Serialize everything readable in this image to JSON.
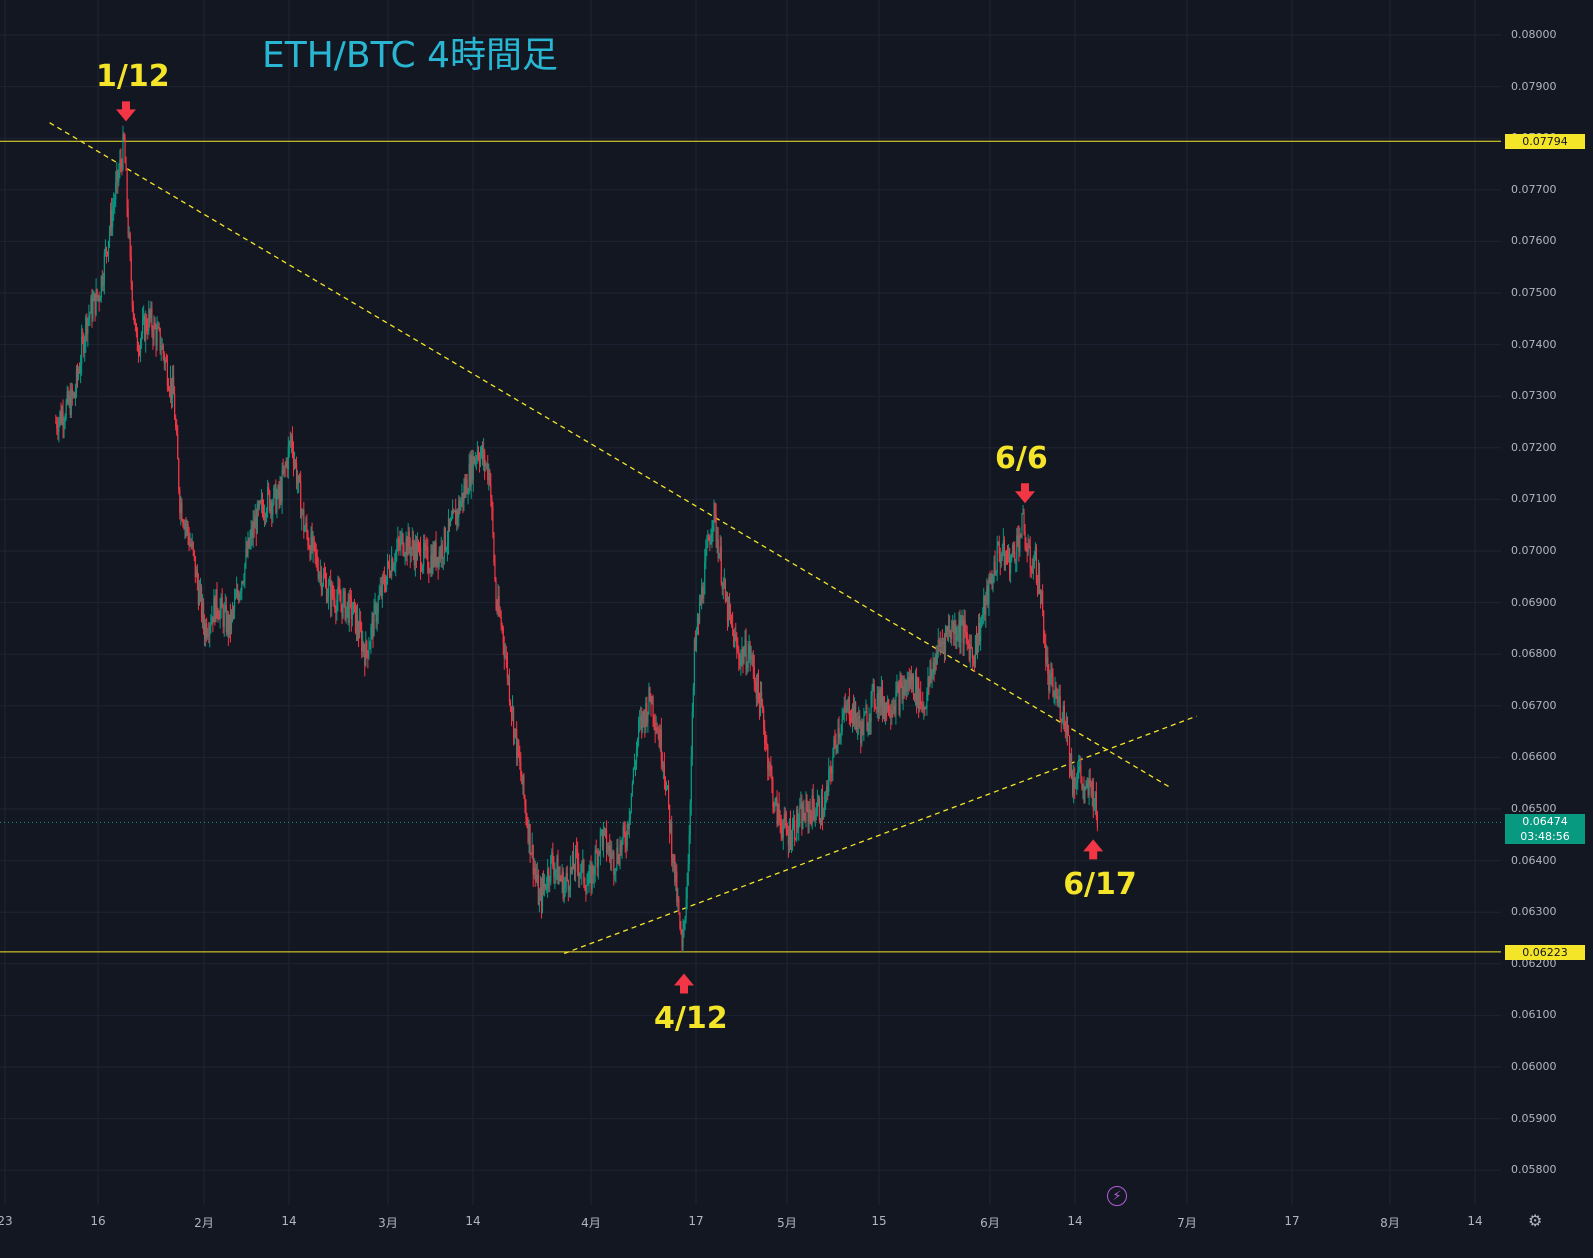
{
  "chart_data": {
    "type": "candlestick",
    "title": "ETH/BTC 4時間足",
    "ylim": [
      0.0575,
      0.0805
    ],
    "y_ticks": [
      "0.08000",
      "0.07900",
      "0.07800",
      "0.07700",
      "0.07600",
      "0.07500",
      "0.07400",
      "0.07300",
      "0.07200",
      "0.07100",
      "0.07000",
      "0.06900",
      "0.06800",
      "0.06700",
      "0.06600",
      "0.06500",
      "0.06400",
      "0.06300",
      "0.06200",
      "0.06100",
      "0.06000",
      "0.05900",
      "0.05800"
    ],
    "x_ticks": [
      "23",
      "16",
      "2月",
      "14",
      "3月",
      "14",
      "4月",
      "17",
      "5月",
      "15",
      "6月",
      "14",
      "7月",
      "17",
      "8月",
      "14"
    ],
    "price_path": [
      [
        "2023-01-01",
        0.0725
      ],
      [
        "2023-01-04",
        0.073
      ],
      [
        "2023-01-06",
        0.0745
      ],
      [
        "2023-01-08",
        0.075
      ],
      [
        "2023-01-10",
        0.0765
      ],
      [
        "2023-01-12",
        0.0779
      ],
      [
        "2023-01-13",
        0.0755
      ],
      [
        "2023-01-14",
        0.074
      ],
      [
        "2023-01-16",
        0.0745
      ],
      [
        "2023-01-18",
        0.074
      ],
      [
        "2023-01-20",
        0.073
      ],
      [
        "2023-01-21",
        0.071
      ],
      [
        "2023-01-23",
        0.07
      ],
      [
        "2023-01-25",
        0.0685
      ],
      [
        "2023-01-27",
        0.069
      ],
      [
        "2023-01-29",
        0.0685
      ],
      [
        "2023-01-31",
        0.0695
      ],
      [
        "2023-02-02",
        0.0705
      ],
      [
        "2023-02-04",
        0.071
      ],
      [
        "2023-02-06",
        0.071
      ],
      [
        "2023-02-08",
        0.0722
      ],
      [
        "2023-02-10",
        0.0705
      ],
      [
        "2023-02-12",
        0.0698
      ],
      [
        "2023-02-14",
        0.0692
      ],
      [
        "2023-02-16",
        0.069
      ],
      [
        "2023-02-18",
        0.0688
      ],
      [
        "2023-02-20",
        0.068
      ],
      [
        "2023-02-22",
        0.069
      ],
      [
        "2023-02-24",
        0.0698
      ],
      [
        "2023-02-26",
        0.0702
      ],
      [
        "2023-02-28",
        0.07
      ],
      [
        "2023-03-02",
        0.0698
      ],
      [
        "2023-03-04",
        0.07
      ],
      [
        "2023-03-06",
        0.0705
      ],
      [
        "2023-03-08",
        0.0712
      ],
      [
        "2023-03-10",
        0.072
      ],
      [
        "2023-03-12",
        0.0715
      ],
      [
        "2023-03-13",
        0.069
      ],
      [
        "2023-03-14",
        0.0685
      ],
      [
        "2023-03-16",
        0.0665
      ],
      [
        "2023-03-18",
        0.0648
      ],
      [
        "2023-03-20",
        0.0632
      ],
      [
        "2023-03-22",
        0.064
      ],
      [
        "2023-03-24",
        0.0635
      ],
      [
        "2023-03-26",
        0.064
      ],
      [
        "2023-03-28",
        0.0635
      ],
      [
        "2023-03-30",
        0.0645
      ],
      [
        "2023-04-01",
        0.064
      ],
      [
        "2023-04-03",
        0.0645
      ],
      [
        "2023-04-05",
        0.0665
      ],
      [
        "2023-04-07",
        0.0672
      ],
      [
        "2023-04-09",
        0.066
      ],
      [
        "2023-04-11",
        0.0635
      ],
      [
        "2023-04-12",
        0.0622
      ],
      [
        "2023-04-13",
        0.064
      ],
      [
        "2023-04-14",
        0.068
      ],
      [
        "2023-04-15",
        0.069
      ],
      [
        "2023-04-17",
        0.0708
      ],
      [
        "2023-04-18",
        0.07
      ],
      [
        "2023-04-19",
        0.069
      ],
      [
        "2023-04-21",
        0.068
      ],
      [
        "2023-04-23",
        0.068
      ],
      [
        "2023-04-25",
        0.0668
      ],
      [
        "2023-04-27",
        0.065
      ],
      [
        "2023-04-29",
        0.0645
      ],
      [
        "2023-05-01",
        0.0648
      ],
      [
        "2023-05-03",
        0.065
      ],
      [
        "2023-05-05",
        0.065
      ],
      [
        "2023-05-07",
        0.0665
      ],
      [
        "2023-05-09",
        0.067
      ],
      [
        "2023-05-11",
        0.0665
      ],
      [
        "2023-05-13",
        0.0672
      ],
      [
        "2023-05-15",
        0.067
      ],
      [
        "2023-05-17",
        0.0672
      ],
      [
        "2023-05-19",
        0.0675
      ],
      [
        "2023-05-21",
        0.067
      ],
      [
        "2023-05-23",
        0.068
      ],
      [
        "2023-05-25",
        0.0685
      ],
      [
        "2023-05-27",
        0.0685
      ],
      [
        "2023-05-29",
        0.068
      ],
      [
        "2023-05-31",
        0.069
      ],
      [
        "2023-06-02",
        0.07
      ],
      [
        "2023-06-04",
        0.0698
      ],
      [
        "2023-06-06",
        0.0705
      ],
      [
        "2023-06-07",
        0.0698
      ],
      [
        "2023-06-08",
        0.0698
      ],
      [
        "2023-06-09",
        0.069
      ],
      [
        "2023-06-10",
        0.0675
      ],
      [
        "2023-06-12",
        0.067
      ],
      [
        "2023-06-13",
        0.0667
      ],
      [
        "2023-06-14",
        0.0655
      ],
      [
        "2023-06-15",
        0.0658
      ],
      [
        "2023-06-16",
        0.0652
      ],
      [
        "2023-06-17",
        0.0655
      ],
      [
        "2023-06-18",
        0.0648
      ]
    ],
    "horizontal_levels": [
      {
        "price": 0.07794,
        "label": "0.07794"
      },
      {
        "price": 0.06223,
        "label": "0.06223"
      }
    ],
    "last_price": {
      "price": 0.06474,
      "label": "0.06474",
      "countdown": "03:48:56"
    },
    "trendlines": [
      {
        "from": [
          "2022-12-31",
          0.0783
        ],
        "to": [
          "2023-06-30",
          0.0654
        ]
      },
      {
        "from": [
          "2023-03-24",
          0.0622
        ],
        "to": [
          "2023-07-04",
          0.0668
        ]
      }
    ],
    "annotations": [
      {
        "text": "1/12",
        "date": "2023-01-12",
        "price": 0.0779,
        "arrow": "down"
      },
      {
        "text": "4/12",
        "date": "2023-04-12",
        "price": 0.0622,
        "arrow": "up"
      },
      {
        "text": "6/6",
        "date": "2023-06-06",
        "price": 0.0705,
        "arrow": "down"
      },
      {
        "text": "6/17",
        "date": "2023-06-17",
        "price": 0.0648,
        "arrow": "up"
      }
    ],
    "colors": {
      "up": "#089981",
      "down": "#f23645",
      "level": "#f5e528",
      "trend": "#f5e528",
      "arrow": "#f23645",
      "title": "#29b6d2"
    }
  }
}
